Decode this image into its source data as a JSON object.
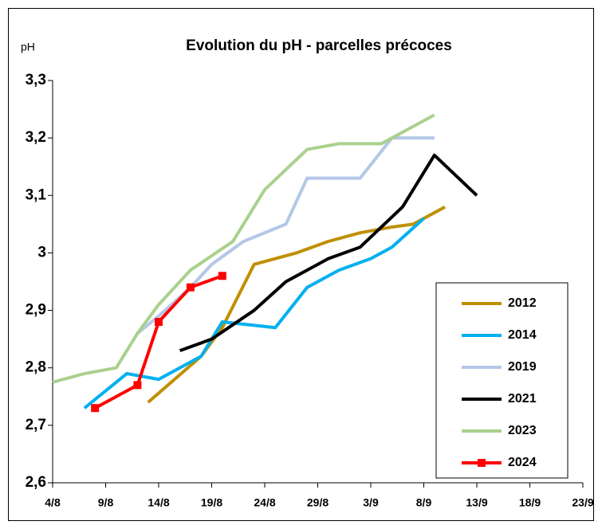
{
  "chart_data": {
    "type": "line",
    "title": "Evolution du pH - parcelles précoces",
    "y_label": "pH",
    "xlim": [
      "4/8",
      "23/9"
    ],
    "xticks": [
      "4/8",
      "9/8",
      "14/8",
      "19/8",
      "24/8",
      "29/8",
      "3/9",
      "8/9",
      "13/9",
      "18/9",
      "23/9"
    ],
    "ylim": [
      2.6,
      3.3
    ],
    "yticks": [
      {
        "value": 2.6,
        "label": "2,6"
      },
      {
        "value": 2.7,
        "label": "2,7"
      },
      {
        "value": 2.8,
        "label": "2,8"
      },
      {
        "value": 2.9,
        "label": "2,9"
      },
      3,
      {
        "value": 3.1,
        "label": "3,1"
      },
      {
        "value": 3.2,
        "label": "3,2"
      },
      {
        "value": 3.3,
        "label": "3,3"
      }
    ],
    "grid": false,
    "legend": "lower right",
    "series": [
      {
        "name": "2012",
        "color": "#bf9000",
        "x": [
          "13/8",
          "18/8",
          "20/8",
          "23/8",
          "27/8",
          "30/8",
          "2/9",
          "5/9",
          "7/9",
          "10/9"
        ],
        "values": [
          2.74,
          2.82,
          2.87,
          2.98,
          3.0,
          3.02,
          3.035,
          3.045,
          3.05,
          3.08
        ]
      },
      {
        "name": "2014",
        "color": "#00b0f0",
        "x": [
          "7/8",
          "11/8",
          "14/8",
          "18/8",
          "20/8",
          "25/8",
          "28/8",
          "31/8",
          "3/9",
          "5/9",
          "8/9"
        ],
        "values": [
          2.73,
          2.79,
          2.78,
          2.82,
          2.88,
          2.87,
          2.94,
          2.97,
          2.99,
          3.01,
          3.06
        ]
      },
      {
        "name": "2019",
        "color": "#b4c7e7",
        "x": [
          "12/8",
          "14/8",
          "17/8",
          "19/8",
          "22/8",
          "26/8",
          "28/8",
          "2/9",
          "5/9",
          "9/9"
        ],
        "values": [
          2.86,
          2.89,
          2.94,
          2.98,
          3.02,
          3.05,
          3.13,
          3.13,
          3.2,
          3.2
        ]
      },
      {
        "name": "2021",
        "color": "#000000",
        "x": [
          "16/8",
          "19/8",
          "23/8",
          "26/8",
          "30/8",
          "2/9",
          "6/9",
          "9/9",
          "13/9"
        ],
        "values": [
          2.83,
          2.85,
          2.9,
          2.95,
          2.99,
          3.01,
          3.08,
          3.17,
          3.1
        ]
      },
      {
        "name": "2023",
        "color": "#a9d18e",
        "x": [
          "4/8",
          "7/8",
          "10/8",
          "12/8",
          "14/8",
          "17/8",
          "21/8",
          "24/8",
          "28/8",
          "31/8",
          "4/9",
          "9/9"
        ],
        "values": [
          2.775,
          2.79,
          2.8,
          2.86,
          2.91,
          2.97,
          3.02,
          3.11,
          3.18,
          3.19,
          3.19,
          3.24
        ]
      },
      {
        "name": "2024",
        "color": "#ff0000",
        "marker": "square",
        "x": [
          "8/8",
          "12/8",
          "14/8",
          "17/8",
          "20/8"
        ],
        "values": [
          2.73,
          2.77,
          2.88,
          2.94,
          2.96
        ]
      }
    ]
  }
}
